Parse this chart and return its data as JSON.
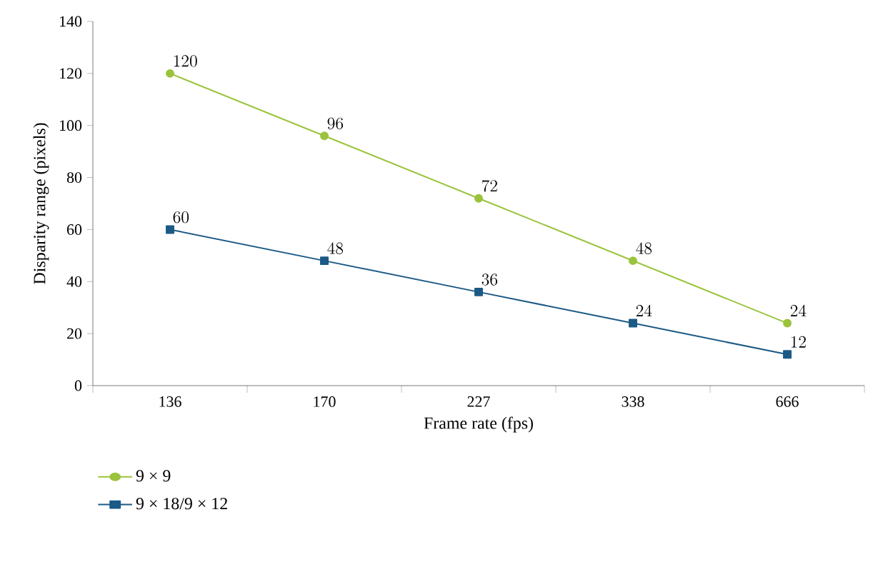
{
  "chart_data": {
    "type": "line",
    "xlabel": "Frame rate (fps)",
    "ylabel": "Disparity range (pixels)",
    "categories": [
      "136",
      "170",
      "227",
      "338",
      "666"
    ],
    "series": [
      {
        "name": "9 × 9",
        "color": "#9bc33c",
        "marker": "circle",
        "values": [
          120,
          96,
          72,
          48,
          24
        ]
      },
      {
        "name": "9 × 18/9 × 12",
        "color": "#1b5a86",
        "marker": "square",
        "values": [
          60,
          48,
          36,
          24,
          12
        ]
      }
    ],
    "ylim": [
      0,
      140
    ],
    "yticks": [
      0,
      20,
      40,
      60,
      80,
      100,
      120,
      140
    ],
    "data_labels": true,
    "grid": false,
    "legend": "bottom left"
  }
}
